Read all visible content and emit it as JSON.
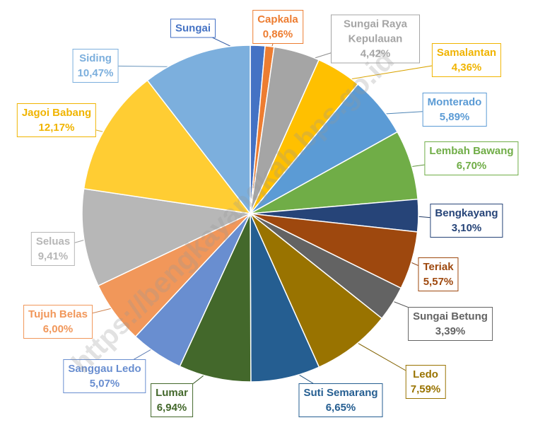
{
  "chart_data": {
    "type": "pie",
    "categories": [
      "Sungai",
      "Capkala",
      "Sungai Raya Kepulauan",
      "Samalantan",
      "Monterado",
      "Lembah Bawang",
      "Bengkayang",
      "Teriak",
      "Sungai Betung",
      "Ledo",
      "Suti Semarang",
      "Lumar",
      "Sanggau Ledo",
      "Tujuh Belas",
      "Seluas",
      "Jagoi Babang",
      "Siding"
    ],
    "values": [
      1.41,
      0.86,
      4.42,
      4.36,
      5.89,
      6.7,
      3.1,
      5.57,
      3.39,
      7.59,
      6.65,
      6.94,
      5.07,
      6.0,
      9.41,
      12.17,
      10.47
    ],
    "value_labels": [
      null,
      "0,86%",
      "4,42%",
      "4,36%",
      "5,89%",
      "6,70%",
      "3,10%",
      "5,57%",
      "3,39%",
      "7,59%",
      "6,65%",
      "6,94%",
      "5,07%",
      "6,00%",
      "9,41%",
      "12,17%",
      "10,47%"
    ],
    "colors": [
      "#4472c4",
      "#ed7d31",
      "#a5a5a5",
      "#ffc000",
      "#5b9bd5",
      "#70ad47",
      "#264478",
      "#9e480e",
      "#636363",
      "#997300",
      "#255e91",
      "#43682b",
      "#698ed0",
      "#f1975a",
      "#b7b7b7",
      "#ffcd33",
      "#7cafdd"
    ],
    "watermark": "https://bengkayangkab.bps.go.id"
  }
}
